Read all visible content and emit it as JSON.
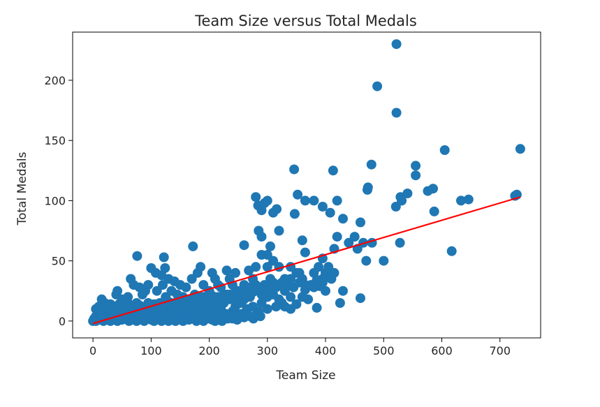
{
  "chart_data": {
    "type": "scatter",
    "title": "Team Size versus Total Medals",
    "xlabel": "Team Size",
    "ylabel": "Total Medals",
    "xlim": [
      -35,
      770
    ],
    "ylim": [
      -14,
      240
    ],
    "xticks": [
      0,
      100,
      200,
      300,
      400,
      500,
      600,
      700
    ],
    "yticks": [
      0,
      50,
      100,
      150,
      200
    ],
    "grid": false,
    "legend": "none",
    "colors": {
      "points": "#1f77b4",
      "fit_line": "#ff0000",
      "frame": "#000000"
    },
    "fit_line": {
      "x": [
        0,
        735
      ],
      "y": [
        -2,
        103
      ]
    },
    "points": [
      [
        522,
        230
      ],
      [
        489,
        195
      ],
      [
        522,
        173
      ],
      [
        735,
        143
      ],
      [
        605,
        142
      ],
      [
        729,
        105
      ],
      [
        726,
        104
      ],
      [
        633,
        100
      ],
      [
        646,
        101
      ],
      [
        555,
        129
      ],
      [
        479,
        130
      ],
      [
        346,
        126
      ],
      [
        413,
        125
      ],
      [
        555,
        121
      ],
      [
        529,
        103
      ],
      [
        541,
        106
      ],
      [
        585,
        110
      ],
      [
        521,
        95
      ],
      [
        576,
        108
      ],
      [
        531,
        100
      ],
      [
        473,
        111
      ],
      [
        472,
        109
      ],
      [
        587,
        91
      ],
      [
        528,
        65
      ],
      [
        617,
        58
      ],
      [
        500,
        50
      ],
      [
        470,
        50
      ],
      [
        465,
        65
      ],
      [
        460,
        82
      ],
      [
        480,
        65
      ],
      [
        455,
        60
      ],
      [
        450,
        70
      ],
      [
        440,
        65
      ],
      [
        420,
        70
      ],
      [
        415,
        60
      ],
      [
        408,
        90
      ],
      [
        420,
        100
      ],
      [
        430,
        85
      ],
      [
        395,
        95
      ],
      [
        380,
        100
      ],
      [
        395,
        52
      ],
      [
        388,
        45
      ],
      [
        365,
        100
      ],
      [
        352,
        105
      ],
      [
        347,
        89
      ],
      [
        365,
        57
      ],
      [
        360,
        67
      ],
      [
        405,
        45
      ],
      [
        410,
        35
      ],
      [
        415,
        40
      ],
      [
        430,
        25
      ],
      [
        425,
        15
      ],
      [
        460,
        19
      ],
      [
        385,
        11
      ],
      [
        395,
        35
      ],
      [
        390,
        30
      ],
      [
        400,
        25
      ],
      [
        370,
        18
      ],
      [
        360,
        35
      ],
      [
        365,
        30
      ],
      [
        350,
        40
      ],
      [
        340,
        45
      ],
      [
        340,
        20
      ],
      [
        330,
        25
      ],
      [
        310,
        50
      ],
      [
        310,
        90
      ],
      [
        316,
        93
      ],
      [
        300,
        100
      ],
      [
        295,
        98
      ],
      [
        280,
        103
      ],
      [
        284,
        96
      ],
      [
        290,
        92
      ],
      [
        285,
        75
      ],
      [
        290,
        70
      ],
      [
        305,
        62
      ],
      [
        300,
        55
      ],
      [
        320,
        75
      ],
      [
        290,
        55
      ],
      [
        280,
        45
      ],
      [
        268,
        42
      ],
      [
        305,
        35
      ],
      [
        295,
        30
      ],
      [
        300,
        45
      ],
      [
        320,
        45
      ],
      [
        330,
        35
      ],
      [
        340,
        35
      ],
      [
        355,
        40
      ],
      [
        380,
        40
      ],
      [
        400,
        40
      ],
      [
        325,
        15
      ],
      [
        315,
        12
      ],
      [
        300,
        10
      ],
      [
        290,
        15
      ],
      [
        270,
        20
      ],
      [
        260,
        63
      ],
      [
        230,
        42
      ],
      [
        235,
        35
      ],
      [
        240,
        30
      ],
      [
        245,
        40
      ],
      [
        250,
        25
      ],
      [
        260,
        30
      ],
      [
        275,
        35
      ],
      [
        285,
        25
      ],
      [
        205,
        40
      ],
      [
        210,
        35
      ],
      [
        215,
        30
      ],
      [
        185,
        45
      ],
      [
        180,
        40
      ],
      [
        172,
        62
      ],
      [
        122,
        53
      ],
      [
        124,
        44
      ],
      [
        100,
        44
      ],
      [
        108,
        40
      ],
      [
        118,
        38
      ],
      [
        76,
        54
      ],
      [
        90,
        25
      ],
      [
        95,
        30
      ],
      [
        130,
        35
      ],
      [
        140,
        33
      ],
      [
        150,
        30
      ],
      [
        160,
        28
      ],
      [
        170,
        35
      ],
      [
        190,
        30
      ],
      [
        200,
        25
      ],
      [
        220,
        28
      ],
      [
        230,
        22
      ],
      [
        250,
        20
      ],
      [
        260,
        18
      ],
      [
        275,
        12
      ],
      [
        285,
        8
      ],
      [
        300,
        20
      ],
      [
        310,
        22
      ],
      [
        320,
        18
      ],
      [
        330,
        12
      ],
      [
        340,
        10
      ],
      [
        350,
        14
      ],
      [
        360,
        20
      ],
      [
        40,
        22
      ],
      [
        42,
        25
      ],
      [
        50,
        18
      ],
      [
        60,
        20
      ],
      [
        65,
        35
      ],
      [
        70,
        30
      ],
      [
        80,
        28
      ],
      [
        85,
        22
      ],
      [
        110,
        25
      ],
      [
        120,
        30
      ],
      [
        125,
        20
      ],
      [
        135,
        25
      ],
      [
        145,
        22
      ],
      [
        155,
        20
      ],
      [
        165,
        18
      ],
      [
        175,
        22
      ],
      [
        185,
        20
      ],
      [
        195,
        18
      ],
      [
        205,
        15
      ],
      [
        215,
        20
      ],
      [
        225,
        15
      ],
      [
        235,
        18
      ],
      [
        245,
        12
      ],
      [
        255,
        15
      ],
      [
        265,
        10
      ],
      [
        15,
        18
      ],
      [
        20,
        15
      ],
      [
        25,
        12
      ],
      [
        30,
        10
      ],
      [
        35,
        12
      ],
      [
        45,
        14
      ],
      [
        55,
        12
      ],
      [
        60,
        15
      ],
      [
        70,
        12
      ],
      [
        75,
        15
      ],
      [
        80,
        10
      ],
      [
        90,
        12
      ],
      [
        95,
        15
      ],
      [
        100,
        10
      ],
      [
        105,
        14
      ],
      [
        110,
        12
      ],
      [
        115,
        15
      ],
      [
        120,
        10
      ],
      [
        130,
        12
      ],
      [
        135,
        15
      ],
      [
        140,
        10
      ],
      [
        150,
        12
      ],
      [
        155,
        15
      ],
      [
        160,
        10
      ],
      [
        170,
        12
      ],
      [
        175,
        15
      ],
      [
        180,
        10
      ],
      [
        190,
        12
      ],
      [
        195,
        8
      ],
      [
        200,
        10
      ],
      [
        210,
        8
      ],
      [
        220,
        10
      ],
      [
        230,
        5
      ],
      [
        240,
        8
      ],
      [
        250,
        5
      ],
      [
        0,
        0
      ],
      [
        2,
        2
      ],
      [
        3,
        1
      ],
      [
        5,
        4
      ],
      [
        5,
        0
      ],
      [
        8,
        2
      ],
      [
        8,
        6
      ],
      [
        10,
        1
      ],
      [
        12,
        4
      ],
      [
        12,
        8
      ],
      [
        15,
        2
      ],
      [
        15,
        6
      ],
      [
        18,
        0
      ],
      [
        18,
        4
      ],
      [
        20,
        8
      ],
      [
        22,
        2
      ],
      [
        25,
        5
      ],
      [
        25,
        1
      ],
      [
        28,
        3
      ],
      [
        30,
        6
      ],
      [
        30,
        0
      ],
      [
        32,
        2
      ],
      [
        35,
        5
      ],
      [
        38,
        1
      ],
      [
        40,
        4
      ],
      [
        40,
        8
      ],
      [
        42,
        0
      ],
      [
        45,
        3
      ],
      [
        48,
        6
      ],
      [
        50,
        1
      ],
      [
        50,
        9
      ],
      [
        52,
        4
      ],
      [
        55,
        7
      ],
      [
        58,
        2
      ],
      [
        60,
        5
      ],
      [
        62,
        0
      ],
      [
        65,
        3
      ],
      [
        65,
        9
      ],
      [
        68,
        6
      ],
      [
        70,
        1
      ],
      [
        72,
        4
      ],
      [
        75,
        7
      ],
      [
        75,
        0
      ],
      [
        78,
        2
      ],
      [
        80,
        5
      ],
      [
        82,
        8
      ],
      [
        85,
        3
      ],
      [
        88,
        0
      ],
      [
        90,
        6
      ],
      [
        92,
        2
      ],
      [
        95,
        4
      ],
      [
        98,
        8
      ],
      [
        100,
        1
      ],
      [
        100,
        5
      ],
      [
        102,
        3
      ],
      [
        105,
        0
      ],
      [
        108,
        6
      ],
      [
        110,
        2
      ],
      [
        112,
        8
      ],
      [
        115,
        4
      ],
      [
        118,
        0
      ],
      [
        120,
        6
      ],
      [
        122,
        2
      ],
      [
        125,
        4
      ],
      [
        128,
        8
      ],
      [
        130,
        0
      ],
      [
        132,
        5
      ],
      [
        135,
        2
      ],
      [
        138,
        7
      ],
      [
        140,
        3
      ],
      [
        142,
        0
      ],
      [
        145,
        5
      ],
      [
        148,
        8
      ],
      [
        150,
        2
      ],
      [
        152,
        6
      ],
      [
        155,
        0
      ],
      [
        158,
        4
      ],
      [
        160,
        2
      ],
      [
        162,
        6
      ],
      [
        165,
        1
      ],
      [
        168,
        4
      ],
      [
        170,
        7
      ],
      [
        172,
        2
      ],
      [
        175,
        5
      ],
      [
        178,
        0
      ],
      [
        180,
        3
      ],
      [
        182,
        7
      ],
      [
        185,
        2
      ],
      [
        188,
        5
      ],
      [
        190,
        0
      ],
      [
        192,
        4
      ],
      [
        195,
        2
      ],
      [
        198,
        6
      ],
      [
        200,
        2
      ],
      [
        202,
        5
      ],
      [
        205,
        1
      ],
      [
        208,
        4
      ],
      [
        210,
        0
      ],
      [
        212,
        3
      ],
      [
        215,
        6
      ],
      [
        218,
        2
      ],
      [
        220,
        4
      ],
      [
        222,
        0
      ],
      [
        225,
        3
      ],
      [
        228,
        6
      ],
      [
        232,
        2
      ],
      [
        236,
        5
      ],
      [
        240,
        2
      ],
      [
        244,
        4
      ],
      [
        248,
        1
      ],
      [
        252,
        3
      ],
      [
        256,
        6
      ],
      [
        260,
        3
      ],
      [
        264,
        5
      ],
      [
        270,
        4
      ],
      [
        276,
        2
      ],
      [
        282,
        6
      ],
      [
        288,
        4
      ],
      [
        5,
        10
      ],
      [
        10,
        12
      ],
      [
        15,
        8
      ],
      [
        20,
        11
      ],
      [
        25,
        9
      ],
      [
        30,
        14
      ],
      [
        35,
        8
      ],
      [
        40,
        12
      ],
      [
        45,
        10
      ],
      [
        50,
        14
      ],
      [
        55,
        9
      ],
      [
        60,
        11
      ],
      [
        65,
        13
      ],
      [
        70,
        9
      ],
      [
        75,
        11
      ],
      [
        80,
        13
      ],
      [
        85,
        9
      ],
      [
        90,
        11
      ],
      [
        95,
        13
      ],
      [
        100,
        9
      ],
      [
        105,
        11
      ],
      [
        110,
        14
      ],
      [
        115,
        9
      ],
      [
        120,
        13
      ],
      [
        125,
        11
      ],
      [
        130,
        16
      ],
      [
        135,
        9
      ],
      [
        140,
        13
      ],
      [
        145,
        16
      ],
      [
        150,
        11
      ],
      [
        155,
        13
      ],
      [
        160,
        16
      ],
      [
        165,
        12
      ],
      [
        170,
        14
      ],
      [
        175,
        18
      ],
      [
        180,
        14
      ],
      [
        185,
        16
      ],
      [
        190,
        20
      ],
      [
        195,
        14
      ],
      [
        200,
        18
      ],
      [
        205,
        21
      ],
      [
        210,
        16
      ],
      [
        215,
        13
      ],
      [
        220,
        18
      ],
      [
        225,
        22
      ],
      [
        230,
        18
      ],
      [
        235,
        22
      ],
      [
        240,
        18
      ],
      [
        245,
        24
      ],
      [
        250,
        19
      ],
      [
        255,
        22
      ],
      [
        260,
        24
      ],
      [
        265,
        20
      ],
      [
        270,
        28
      ],
      [
        275,
        24
      ],
      [
        280,
        30
      ],
      [
        285,
        27
      ],
      [
        290,
        22
      ],
      [
        295,
        26
      ],
      [
        300,
        30
      ],
      [
        305,
        26
      ],
      [
        310,
        32
      ],
      [
        315,
        28
      ],
      [
        320,
        30
      ],
      [
        325,
        32
      ],
      [
        330,
        28
      ],
      [
        335,
        30
      ],
      [
        345,
        28
      ],
      [
        355,
        32
      ],
      [
        365,
        26
      ],
      [
        375,
        30
      ],
      [
        380,
        28
      ],
      [
        385,
        34
      ],
      [
        390,
        29
      ],
      [
        395,
        32
      ]
    ]
  }
}
